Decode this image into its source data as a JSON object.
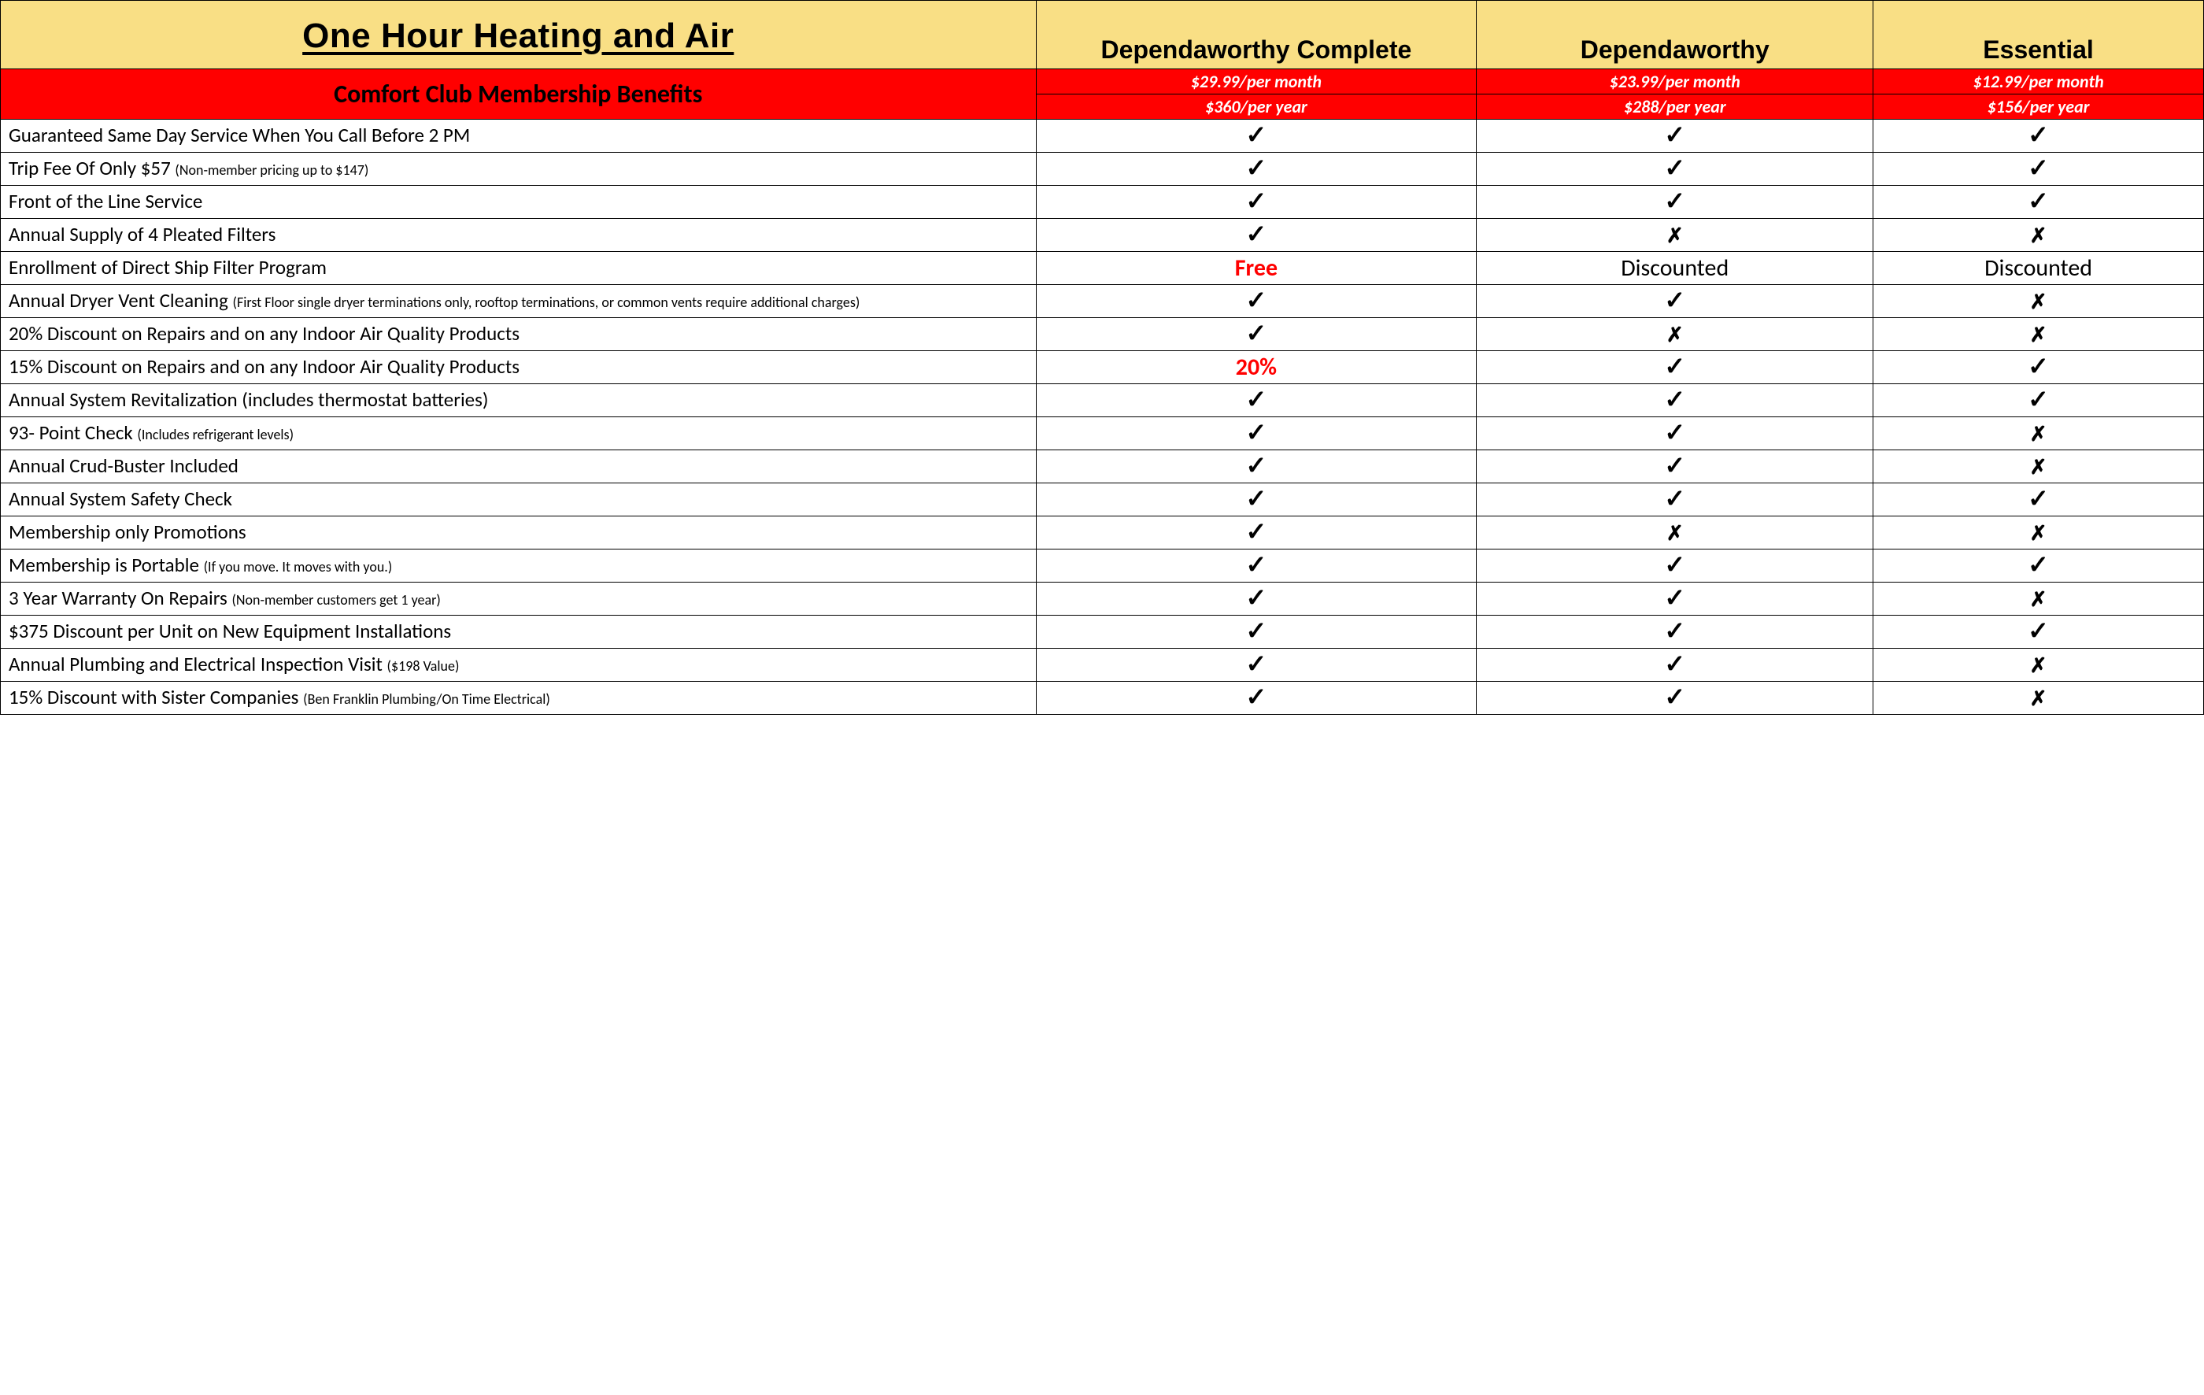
{
  "colors": {
    "header_yellow": "#f9df85",
    "header_red": "#ff0000",
    "border": "#000000",
    "text_black": "#000000",
    "text_white": "#ffffff",
    "accent_red": "#ff0000"
  },
  "layout": {
    "col_widths_pct": [
      47,
      20,
      18,
      15
    ]
  },
  "header": {
    "title": "One Hour Heating and Air",
    "subtitle": "Comfort Club Membership Benefits",
    "plans": [
      {
        "name": "Dependaworthy Complete",
        "price_month": "$29.99/per month",
        "price_year": "$360/per year"
      },
      {
        "name": "Dependaworthy",
        "price_month": "$23.99/per month",
        "price_year": "$288/per year"
      },
      {
        "name": "Essential",
        "price_month": "$12.99/per month",
        "price_year": "$156/per year"
      }
    ]
  },
  "symbols": {
    "check": "✓",
    "cross": "✗"
  },
  "rows": [
    {
      "label": "Guaranteed Same Day Service When You Call Before 2 PM",
      "sub": "",
      "v": [
        "check",
        "check",
        "check"
      ]
    },
    {
      "label": "Trip Fee Of Only $57 ",
      "sub": "(Non-member pricing up to $147)",
      "v": [
        "check",
        "check",
        "check"
      ]
    },
    {
      "label": "Front of the Line Service",
      "sub": "",
      "v": [
        "check",
        "check",
        "check"
      ]
    },
    {
      "label": "Annual Supply of 4 Pleated Filters",
      "sub": "",
      "v": [
        "check",
        "cross",
        "cross"
      ]
    },
    {
      "label": "Enrollment of Direct Ship Filter Program",
      "sub": "",
      "v": [
        {
          "text": "Free",
          "style": "red"
        },
        {
          "text": "Discounted",
          "style": "black"
        },
        {
          "text": "Discounted",
          "style": "black"
        }
      ]
    },
    {
      "label": "Annual Dryer Vent Cleaning ",
      "sub": "(First Floor single dryer terminations only, rooftop terminations, or common vents require additional charges)",
      "multiline": true,
      "v": [
        "check",
        "check",
        "cross"
      ]
    },
    {
      "label": "20% Discount on Repairs and on any Indoor Air Quality Products",
      "sub": "",
      "v": [
        "check",
        "cross",
        "cross"
      ]
    },
    {
      "label": "15% Discount on Repairs and on any Indoor Air Quality Products",
      "sub": "",
      "v": [
        {
          "text": "20%",
          "style": "red"
        },
        "check",
        "check"
      ]
    },
    {
      "label": "Annual System Revitalization (includes thermostat batteries)",
      "sub": "",
      "v": [
        "check",
        "check",
        "check"
      ]
    },
    {
      "label": "93- Point Check ",
      "sub": "(Includes refrigerant levels)",
      "v": [
        "check",
        "check",
        "cross"
      ]
    },
    {
      "label": "Annual Crud-Buster Included",
      "sub": "",
      "v": [
        "check",
        "check",
        "cross"
      ]
    },
    {
      "label": "Annual System Safety Check",
      "sub": "",
      "v": [
        "check",
        "check",
        "check"
      ]
    },
    {
      "label": "Membership only Promotions",
      "sub": "",
      "v": [
        "check",
        "cross",
        "cross"
      ]
    },
    {
      "label": "Membership is Portable ",
      "sub": "(If you move. It moves with you.)",
      "v": [
        "check",
        "check",
        "check"
      ]
    },
    {
      "label": "3 Year Warranty On Repairs ",
      "sub": "(Non-member customers get 1 year)",
      "v": [
        "check",
        "check",
        "cross"
      ]
    },
    {
      "label": "$375 Discount per Unit on New Equipment Installations",
      "sub": "",
      "v": [
        "check",
        "check",
        "check"
      ]
    },
    {
      "label": "Annual Plumbing and Electrical Inspection Visit ",
      "sub": "($198 Value)",
      "v": [
        "check",
        "check",
        "cross"
      ]
    },
    {
      "label": "15% Discount with Sister Companies ",
      "sub": "(Ben Franklin Plumbing/On Time Electrical)",
      "v": [
        "check",
        "check",
        "cross"
      ]
    }
  ]
}
